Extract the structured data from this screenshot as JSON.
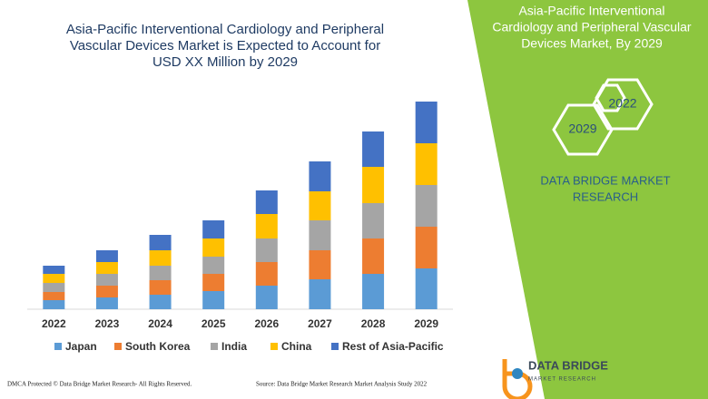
{
  "chart_data": {
    "type": "stacked_bar",
    "title_lines": [
      "Asia-Pacific Interventional Cardiology and Peripheral",
      "Vascular Devices Market is Expected to Account for",
      "USD XX Million by 2029"
    ],
    "categories": [
      "2022",
      "2023",
      "2024",
      "2025",
      "2026",
      "2027",
      "2028",
      "2029"
    ],
    "series": [
      {
        "name": "Japan",
        "color": "#5b9bd5",
        "values": [
          10,
          13,
          16,
          20,
          26,
          33,
          39,
          45
        ]
      },
      {
        "name": "South Korea",
        "color": "#ed7d31",
        "values": [
          9,
          13,
          16,
          19,
          26,
          32,
          39,
          46
        ]
      },
      {
        "name": "India",
        "color": "#a5a5a5",
        "values": [
          10,
          13,
          16,
          19,
          26,
          33,
          39,
          46
        ]
      },
      {
        "name": "China",
        "color": "#ffc000",
        "values": [
          10,
          13,
          17,
          20,
          27,
          32,
          40,
          46
        ]
      },
      {
        "name": "Rest of Asia-Pacific",
        "color": "#4472c4",
        "values": [
          9,
          13,
          17,
          20,
          26,
          33,
          39,
          46
        ]
      }
    ],
    "ylim": [
      0,
      240
    ]
  },
  "side_panel": {
    "title_lines": [
      "Asia-Pacific Interventional",
      "Cardiology and Peripheral Vascular",
      "Devices Market, By 2029"
    ],
    "hexagons": [
      "2022",
      "2029"
    ],
    "brand_lines": [
      "DATA BRIDGE MARKET",
      "RESEARCH"
    ]
  },
  "logo": {
    "name": "DATA BRIDGE",
    "tagline": "MARKET RESEARCH"
  },
  "footer": {
    "left": "DMCA Protected © Data Bridge Market Research- All Rights Reserved.",
    "right": "Source: Data Bridge Market Research Market Analysis Study 2022"
  }
}
